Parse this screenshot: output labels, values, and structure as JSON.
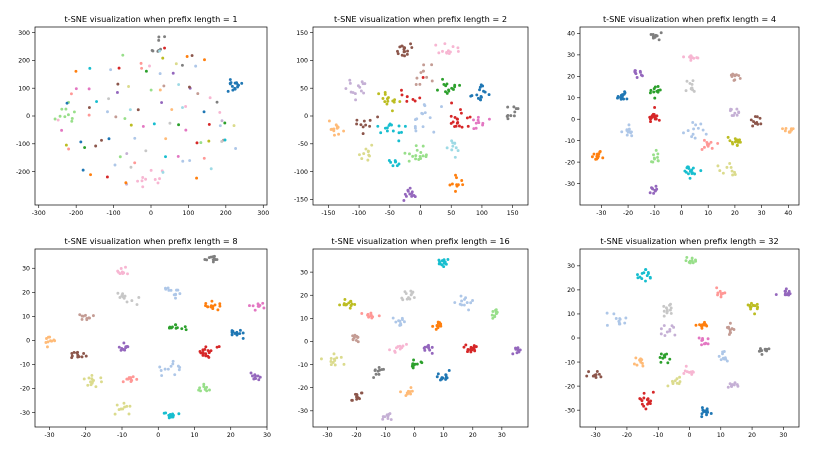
{
  "palette": [
    "#1f77b4",
    "#ff7f0e",
    "#2ca02c",
    "#d62728",
    "#9467bd",
    "#8c564b",
    "#e377c2",
    "#7f7f7f",
    "#bcbd22",
    "#17becf",
    "#aec7e8",
    "#ffbb78",
    "#98df8a",
    "#ff9896",
    "#c5b0d5",
    "#c49c94",
    "#f7b6d2",
    "#c7c7c7",
    "#dbdb8d",
    "#9edae5"
  ],
  "chart_data": [
    {
      "type": "scatter",
      "title": "t-SNE visualization when prefix length = 1",
      "xlim": [
        -310,
        310
      ],
      "ylim": [
        -320,
        320
      ],
      "xticks": [
        -300,
        -200,
        -100,
        0,
        100,
        200,
        300
      ],
      "yticks": [
        -200,
        -100,
        0,
        100,
        200,
        300
      ],
      "mode": "diffuse",
      "clusters": [
        {
          "x": 220,
          "y": 110,
          "color": 0,
          "n": 16,
          "spread": 12
        },
        {
          "x": -230,
          "y": 0,
          "color": 12,
          "n": 10,
          "spread": 20
        },
        {
          "x": 0,
          "y": -230,
          "color": 16,
          "n": 10,
          "spread": 25
        },
        {
          "x": 20,
          "y": 250,
          "color": 7,
          "n": 8,
          "spread": 20
        }
      ]
    },
    {
      "type": "scatter",
      "title": "t-SNE visualization when prefix length = 2",
      "xlim": [
        -175,
        175
      ],
      "ylim": [
        -160,
        160
      ],
      "xticks": [
        -150,
        -100,
        -50,
        0,
        50,
        100,
        150
      ],
      "yticks": [
        -150,
        -100,
        -50,
        0,
        50,
        100,
        150
      ],
      "mode": "clusters",
      "clusters": [
        {
          "x": -28,
          "y": 120,
          "color": 5,
          "n": 16,
          "spread": 6
        },
        {
          "x": 45,
          "y": 120,
          "color": 16,
          "n": 12,
          "spread": 9
        },
        {
          "x": 5,
          "y": 75,
          "color": 15,
          "n": 10,
          "spread": 10
        },
        {
          "x": -100,
          "y": 50,
          "color": 14,
          "n": 14,
          "spread": 9
        },
        {
          "x": 48,
          "y": 50,
          "color": 2,
          "n": 14,
          "spread": 7
        },
        {
          "x": 100,
          "y": 40,
          "color": 0,
          "n": 16,
          "spread": 7
        },
        {
          "x": -55,
          "y": 30,
          "color": 8,
          "n": 14,
          "spread": 9
        },
        {
          "x": 60,
          "y": -5,
          "color": 3,
          "n": 18,
          "spread": 9
        },
        {
          "x": 95,
          "y": -15,
          "color": 6,
          "n": 10,
          "spread": 7
        },
        {
          "x": 150,
          "y": 5,
          "color": 7,
          "n": 10,
          "spread": 6
        },
        {
          "x": -140,
          "y": -20,
          "color": 11,
          "n": 12,
          "spread": 8
        },
        {
          "x": -90,
          "y": -15,
          "color": 5,
          "n": 10,
          "spread": 12
        },
        {
          "x": -45,
          "y": -25,
          "color": 9,
          "n": 14,
          "spread": 12
        },
        {
          "x": 5,
          "y": -5,
          "color": 10,
          "n": 14,
          "spread": 15
        },
        {
          "x": -85,
          "y": -65,
          "color": 18,
          "n": 10,
          "spread": 8
        },
        {
          "x": -5,
          "y": -70,
          "color": 12,
          "n": 16,
          "spread": 8
        },
        {
          "x": 50,
          "y": -50,
          "color": 19,
          "n": 10,
          "spread": 8
        },
        {
          "x": -45,
          "y": -85,
          "color": 9,
          "n": 8,
          "spread": 6
        },
        {
          "x": 60,
          "y": -120,
          "color": 1,
          "n": 10,
          "spread": 8
        },
        {
          "x": -20,
          "y": -140,
          "color": 4,
          "n": 12,
          "spread": 6
        },
        {
          "x": -20,
          "y": 40,
          "color": 3,
          "n": 8,
          "spread": 12
        }
      ]
    },
    {
      "type": "scatter",
      "title": "t-SNE visualization when prefix length = 4",
      "xlim": [
        -38,
        44
      ],
      "ylim": [
        -40,
        43
      ],
      "xticks": [
        -30,
        -20,
        -10,
        0,
        10,
        20,
        30,
        40
      ],
      "yticks": [
        -30,
        -20,
        -10,
        0,
        10,
        20,
        30,
        40
      ],
      "mode": "clusters",
      "clusters": [
        {
          "x": -10,
          "y": 38,
          "color": 7,
          "n": 12,
          "spread": 1.0
        },
        {
          "x": 4,
          "y": 29,
          "color": 16,
          "n": 10,
          "spread": 1.2
        },
        {
          "x": -16,
          "y": 22,
          "color": 4,
          "n": 10,
          "spread": 1.2
        },
        {
          "x": 20,
          "y": 20,
          "color": 15,
          "n": 10,
          "spread": 1.0
        },
        {
          "x": -22,
          "y": 11,
          "color": 0,
          "n": 14,
          "spread": 1.3
        },
        {
          "x": -10,
          "y": 13,
          "color": 2,
          "n": 12,
          "spread": 1.2
        },
        {
          "x": 4,
          "y": 16,
          "color": 17,
          "n": 10,
          "spread": 1.5
        },
        {
          "x": -10,
          "y": 1,
          "color": 3,
          "n": 18,
          "spread": 1.5
        },
        {
          "x": 20,
          "y": 3,
          "color": 14,
          "n": 10,
          "spread": 1.3
        },
        {
          "x": 28,
          "y": -1,
          "color": 5,
          "n": 10,
          "spread": 1.5
        },
        {
          "x": 40,
          "y": -5,
          "color": 11,
          "n": 10,
          "spread": 1.0
        },
        {
          "x": -20,
          "y": -6,
          "color": 10,
          "n": 12,
          "spread": 1.5
        },
        {
          "x": 5,
          "y": -5,
          "color": 10,
          "n": 12,
          "spread": 2.0
        },
        {
          "x": 10,
          "y": -12,
          "color": 13,
          "n": 10,
          "spread": 1.5
        },
        {
          "x": 20,
          "y": -10,
          "color": 8,
          "n": 14,
          "spread": 1.3
        },
        {
          "x": -10,
          "y": -18,
          "color": 12,
          "n": 10,
          "spread": 1.3
        },
        {
          "x": 3,
          "y": -24,
          "color": 9,
          "n": 16,
          "spread": 1.5
        },
        {
          "x": 17,
          "y": -24,
          "color": 18,
          "n": 10,
          "spread": 1.5
        },
        {
          "x": -31,
          "y": -17,
          "color": 1,
          "n": 12,
          "spread": 1.2
        },
        {
          "x": -10,
          "y": -33,
          "color": 4,
          "n": 10,
          "spread": 1.0
        }
      ]
    },
    {
      "type": "scatter",
      "title": "t-SNE visualization when prefix length = 8",
      "xlim": [
        -34,
        30
      ],
      "ylim": [
        -36,
        38
      ],
      "xticks": [
        -30,
        -20,
        -10,
        0,
        10,
        20,
        30
      ],
      "yticks": [
        -30,
        -20,
        -10,
        0,
        10,
        20,
        30
      ],
      "mode": "clusters",
      "clusters": [
        {
          "x": 15,
          "y": 34,
          "color": 7,
          "n": 12,
          "spread": 0.8
        },
        {
          "x": -10,
          "y": 29,
          "color": 16,
          "n": 10,
          "spread": 1.0
        },
        {
          "x": 4,
          "y": 20,
          "color": 10,
          "n": 12,
          "spread": 1.3
        },
        {
          "x": -9,
          "y": 17,
          "color": 17,
          "n": 12,
          "spread": 1.5
        },
        {
          "x": 15,
          "y": 14,
          "color": 1,
          "n": 14,
          "spread": 1.2
        },
        {
          "x": 27,
          "y": 15,
          "color": 6,
          "n": 10,
          "spread": 1.0
        },
        {
          "x": -20,
          "y": 10,
          "color": 15,
          "n": 10,
          "spread": 1.2
        },
        {
          "x": 5,
          "y": 5,
          "color": 2,
          "n": 12,
          "spread": 1.0
        },
        {
          "x": 22,
          "y": 3,
          "color": 0,
          "n": 14,
          "spread": 1.2
        },
        {
          "x": -30,
          "y": 0,
          "color": 11,
          "n": 10,
          "spread": 1.0
        },
        {
          "x": -10,
          "y": -3,
          "color": 4,
          "n": 10,
          "spread": 1.0
        },
        {
          "x": 13,
          "y": -5,
          "color": 3,
          "n": 18,
          "spread": 1.3
        },
        {
          "x": -22,
          "y": -6,
          "color": 5,
          "n": 12,
          "spread": 1.2
        },
        {
          "x": 3,
          "y": -12,
          "color": 10,
          "n": 12,
          "spread": 1.5
        },
        {
          "x": -7,
          "y": -16,
          "color": 13,
          "n": 10,
          "spread": 1.3
        },
        {
          "x": -18,
          "y": -17,
          "color": 18,
          "n": 14,
          "spread": 1.3
        },
        {
          "x": 13,
          "y": -20,
          "color": 12,
          "n": 10,
          "spread": 1.0
        },
        {
          "x": 27,
          "y": -15,
          "color": 4,
          "n": 10,
          "spread": 0.9
        },
        {
          "x": -10,
          "y": -28,
          "color": 18,
          "n": 10,
          "spread": 1.3
        },
        {
          "x": 3,
          "y": -31,
          "color": 9,
          "n": 14,
          "spread": 1.0
        }
      ]
    },
    {
      "type": "scatter",
      "title": "t-SNE visualization when prefix length = 16",
      "xlim": [
        -35,
        39
      ],
      "ylim": [
        -37,
        40
      ],
      "xticks": [
        -30,
        -20,
        -10,
        0,
        10,
        20,
        30
      ],
      "yticks": [
        -30,
        -20,
        -10,
        0,
        10,
        20,
        30
      ],
      "mode": "clusters",
      "clusters": [
        {
          "x": 10,
          "y": 34,
          "color": 9,
          "n": 14,
          "spread": 1.0
        },
        {
          "x": -2,
          "y": 20,
          "color": 17,
          "n": 12,
          "spread": 1.3
        },
        {
          "x": 17,
          "y": 18,
          "color": 10,
          "n": 12,
          "spread": 1.3
        },
        {
          "x": -23,
          "y": 16,
          "color": 8,
          "n": 14,
          "spread": 1.3
        },
        {
          "x": 27,
          "y": 12,
          "color": 12,
          "n": 10,
          "spread": 0.9
        },
        {
          "x": -15,
          "y": 11,
          "color": 13,
          "n": 10,
          "spread": 1.3
        },
        {
          "x": -5,
          "y": 8,
          "color": 10,
          "n": 10,
          "spread": 1.5
        },
        {
          "x": 8,
          "y": 7,
          "color": 1,
          "n": 12,
          "spread": 1.0
        },
        {
          "x": -20,
          "y": 2,
          "color": 15,
          "n": 10,
          "spread": 1.0
        },
        {
          "x": 5,
          "y": -3,
          "color": 4,
          "n": 10,
          "spread": 1.0
        },
        {
          "x": -6,
          "y": -3,
          "color": 16,
          "n": 10,
          "spread": 1.2
        },
        {
          "x": 20,
          "y": -3,
          "color": 3,
          "n": 18,
          "spread": 1.3
        },
        {
          "x": 35,
          "y": -4,
          "color": 4,
          "n": 10,
          "spread": 1.0
        },
        {
          "x": -27,
          "y": -8,
          "color": 18,
          "n": 12,
          "spread": 1.5
        },
        {
          "x": 0,
          "y": -10,
          "color": 2,
          "n": 10,
          "spread": 1.0
        },
        {
          "x": -13,
          "y": -13,
          "color": 7,
          "n": 10,
          "spread": 1.0
        },
        {
          "x": 10,
          "y": -15,
          "color": 0,
          "n": 14,
          "spread": 1.3
        },
        {
          "x": -2,
          "y": -22,
          "color": 11,
          "n": 10,
          "spread": 1.0
        },
        {
          "x": -20,
          "y": -24,
          "color": 5,
          "n": 12,
          "spread": 1.0
        },
        {
          "x": -10,
          "y": -33,
          "color": 14,
          "n": 10,
          "spread": 1.0
        }
      ]
    },
    {
      "type": "scatter",
      "title": "t-SNE visualization when prefix length = 32",
      "xlim": [
        -35,
        35
      ],
      "ylim": [
        -37,
        37
      ],
      "xticks": [
        -30,
        -20,
        -10,
        0,
        10,
        20,
        30
      ],
      "yticks": [
        -30,
        -20,
        -10,
        0,
        10,
        20,
        30
      ],
      "mode": "clusters",
      "clusters": [
        {
          "x": 1,
          "y": 32,
          "color": 12,
          "n": 10,
          "spread": 0.9
        },
        {
          "x": -14,
          "y": 26,
          "color": 9,
          "n": 14,
          "spread": 1.2
        },
        {
          "x": 31,
          "y": 19,
          "color": 4,
          "n": 12,
          "spread": 1.0
        },
        {
          "x": 10,
          "y": 18,
          "color": 13,
          "n": 10,
          "spread": 1.0
        },
        {
          "x": 20,
          "y": 13,
          "color": 8,
          "n": 14,
          "spread": 1.3
        },
        {
          "x": -7,
          "y": 12,
          "color": 17,
          "n": 12,
          "spread": 1.2
        },
        {
          "x": -23,
          "y": 7,
          "color": 10,
          "n": 12,
          "spread": 1.3
        },
        {
          "x": 4,
          "y": 6,
          "color": 1,
          "n": 12,
          "spread": 1.0
        },
        {
          "x": 13,
          "y": 4,
          "color": 15,
          "n": 10,
          "spread": 1.0
        },
        {
          "x": -7,
          "y": 3,
          "color": 14,
          "n": 10,
          "spread": 1.2
        },
        {
          "x": 5,
          "y": -2,
          "color": 6,
          "n": 10,
          "spread": 1.2
        },
        {
          "x": 24,
          "y": -5,
          "color": 7,
          "n": 10,
          "spread": 1.0
        },
        {
          "x": -8,
          "y": -8,
          "color": 2,
          "n": 10,
          "spread": 1.0
        },
        {
          "x": 11,
          "y": -8,
          "color": 10,
          "n": 10,
          "spread": 1.2
        },
        {
          "x": -16,
          "y": -10,
          "color": 11,
          "n": 10,
          "spread": 1.0
        },
        {
          "x": 0,
          "y": -14,
          "color": 16,
          "n": 10,
          "spread": 1.0
        },
        {
          "x": -30,
          "y": -15,
          "color": 5,
          "n": 10,
          "spread": 1.0
        },
        {
          "x": -4,
          "y": -18,
          "color": 18,
          "n": 10,
          "spread": 1.2
        },
        {
          "x": 14,
          "y": -20,
          "color": 14,
          "n": 10,
          "spread": 1.0
        },
        {
          "x": -14,
          "y": -26,
          "color": 3,
          "n": 16,
          "spread": 1.3
        },
        {
          "x": 5,
          "y": -31,
          "color": 0,
          "n": 14,
          "spread": 1.0
        }
      ]
    }
  ]
}
